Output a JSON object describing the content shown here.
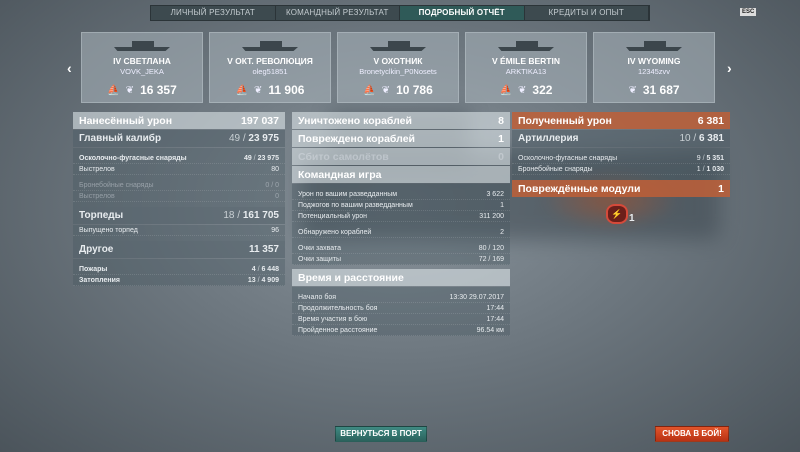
{
  "tabs": [
    {
      "label": "ЛИЧНЫЙ РЕЗУЛЬТАТ",
      "active": false
    },
    {
      "label": "КОМАНДНЫЙ РЕЗУЛЬТАТ",
      "active": false
    },
    {
      "label": "ПОДРОБНЫЙ ОТЧЁТ",
      "active": true
    },
    {
      "label": "КРЕДИТЫ И ОПЫТ",
      "active": false
    }
  ],
  "esc_label": "ESC",
  "nav": {
    "prev": "‹",
    "next": "›"
  },
  "cards": [
    {
      "ship": "IV СВЕТЛАНА",
      "player": "VOVK_JEKA",
      "xp": "16 357",
      "sunk_icon": true
    },
    {
      "ship": "V ОКТ. РЕВОЛЮЦИЯ",
      "player": "oleg51851",
      "xp": "11 906",
      "sunk_icon": true
    },
    {
      "ship": "V ОХОТНИК",
      "player": "Bronetyclkin_P0Nosets",
      "xp": "10 786",
      "sunk_icon": true
    },
    {
      "ship": "V ÉMILE BERTIN",
      "player": "ARKTIKA13",
      "xp": "322",
      "sunk_icon": true
    },
    {
      "ship": "IV WYOMING",
      "player": "12345zvv",
      "xp": "31 687",
      "sunk_icon": false
    }
  ],
  "left": [
    {
      "type": "h1",
      "label": "Нанесённый урон",
      "total": "197 037"
    },
    {
      "type": "h2",
      "label": "Главный калибр",
      "done": "49",
      "total": "23 975"
    },
    {
      "type": "gap"
    },
    {
      "type": "sub bold",
      "label": "Осколочно-фугасные снаряды",
      "done": "49",
      "total": "23 975"
    },
    {
      "type": "sub",
      "label": "Выстрелов",
      "value": "80"
    },
    {
      "type": "gap"
    },
    {
      "type": "sub dim",
      "label": "Бронебойные снаряды",
      "value": "0 / 0"
    },
    {
      "type": "sub dim",
      "label": "Выстрелов",
      "value": "0"
    },
    {
      "type": "gap"
    },
    {
      "type": "h2",
      "label": "Торпеды",
      "done": "18",
      "total": "161 705"
    },
    {
      "type": "sub",
      "label": "Выпущено торпед",
      "value": "96"
    },
    {
      "type": "gap"
    },
    {
      "type": "h2",
      "label": "Другое",
      "total": "11 357"
    },
    {
      "type": "gap"
    },
    {
      "type": "sub bold",
      "label": "Пожары",
      "done": "4",
      "total": "6 448"
    },
    {
      "type": "sub bold",
      "label": "Затопления",
      "done": "13",
      "total": "4 909"
    }
  ],
  "middle": [
    {
      "type": "h1",
      "label": "Уничтожено кораблей",
      "total": "8"
    },
    {
      "type": "h1",
      "label": "Повреждено кораблей",
      "total": "1"
    },
    {
      "type": "h1 dim",
      "label": "Сбито самолётов",
      "total": "0"
    },
    {
      "type": "h1",
      "label": "Командная игра"
    },
    {
      "type": "gap"
    },
    {
      "type": "sub",
      "label": "Урон по вашим разведданным",
      "value": "3 622"
    },
    {
      "type": "sub",
      "label": "Поджогов по вашим разведданным",
      "value": "1"
    },
    {
      "type": "sub",
      "label": "Потенциальный урон",
      "value": "311 200"
    },
    {
      "type": "gap"
    },
    {
      "type": "sub",
      "label": "Обнаружено кораблей",
      "value": "2"
    },
    {
      "type": "gap"
    },
    {
      "type": "sub",
      "label": "Очки захвата",
      "value": "80 / 120"
    },
    {
      "type": "sub",
      "label": "Очки защиты",
      "value": "72 / 169"
    },
    {
      "type": "sep"
    },
    {
      "type": "h1",
      "label": "Время и расстояние"
    },
    {
      "type": "gap"
    },
    {
      "type": "sub",
      "label": "Начало боя",
      "value": "13:30  29.07.2017"
    },
    {
      "type": "sub",
      "label": "Продолжительность боя",
      "value": "17:44"
    },
    {
      "type": "sub",
      "label": "Время участия в бою",
      "value": "17:44"
    },
    {
      "type": "sub",
      "label": "Пройденное расстояние",
      "value": "96.54 км"
    }
  ],
  "right": [
    {
      "type": "h1 or",
      "label": "Полученный урон",
      "total": "6 381"
    },
    {
      "type": "h2",
      "label": "Артиллерия",
      "done": "10",
      "total": "6 381"
    },
    {
      "type": "gap"
    },
    {
      "type": "sub",
      "label": "Осколочно-фугасные снаряды",
      "done": "9",
      "total": "5 351"
    },
    {
      "type": "sub",
      "label": "Бронебойные снаряды",
      "done": "1",
      "total": "1 030"
    },
    {
      "type": "gap"
    },
    {
      "type": "h1 or",
      "label": "Повреждённые модули",
      "total": "1"
    }
  ],
  "modules": {
    "icon": "engine-damage-icon",
    "count": "1"
  },
  "buttons": {
    "port": "ВЕРНУТЬСЯ В ПОРТ",
    "battle": "СНОВА В БОЙ!"
  },
  "colors": {
    "accent_teal": "#2f5a58",
    "received_damage": "#be5f37",
    "battle_button": "#e2552b"
  }
}
